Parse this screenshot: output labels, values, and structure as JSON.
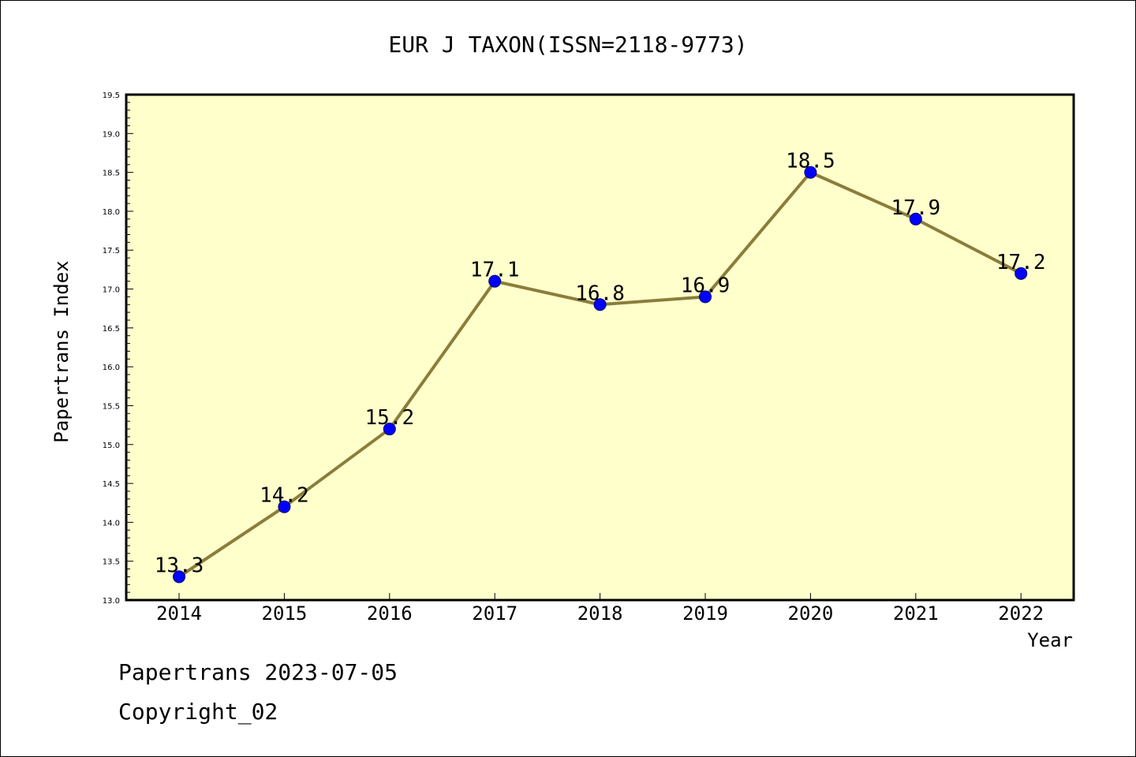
{
  "chart_data": {
    "type": "line",
    "title": "EUR J TAXON(ISSN=2118-9773)",
    "xlabel": "Year",
    "ylabel": "Papertrans Index",
    "categories": [
      "2014",
      "2015",
      "2016",
      "2017",
      "2018",
      "2019",
      "2020",
      "2021",
      "2022"
    ],
    "series": [
      {
        "values": [
          13.3,
          14.2,
          15.2,
          17.1,
          16.8,
          16.9,
          18.5,
          17.9,
          17.2
        ],
        "labels": [
          "13.3",
          "14.2",
          "15.2",
          "17.1",
          "16.8",
          "16.9",
          "18.5",
          "17.9",
          "17.2"
        ]
      }
    ],
    "ylim": [
      13.0,
      19.5
    ],
    "yticks": [
      "13.0",
      "13.5",
      "14.0",
      "14.5",
      "15.0",
      "15.5",
      "16.0",
      "16.5",
      "17.0",
      "17.5",
      "18.0",
      "18.5",
      "19.0",
      "19.5"
    ],
    "grid": false,
    "legend": "none",
    "colors": {
      "plot_background": "#ffffcc",
      "line": "#8b7d3a",
      "marker": "#0000ff",
      "marker_edge": "#00006b"
    }
  },
  "footer": {
    "date_text": "Papertrans 2023-07-05",
    "copyright_text": "Copyright_02"
  }
}
